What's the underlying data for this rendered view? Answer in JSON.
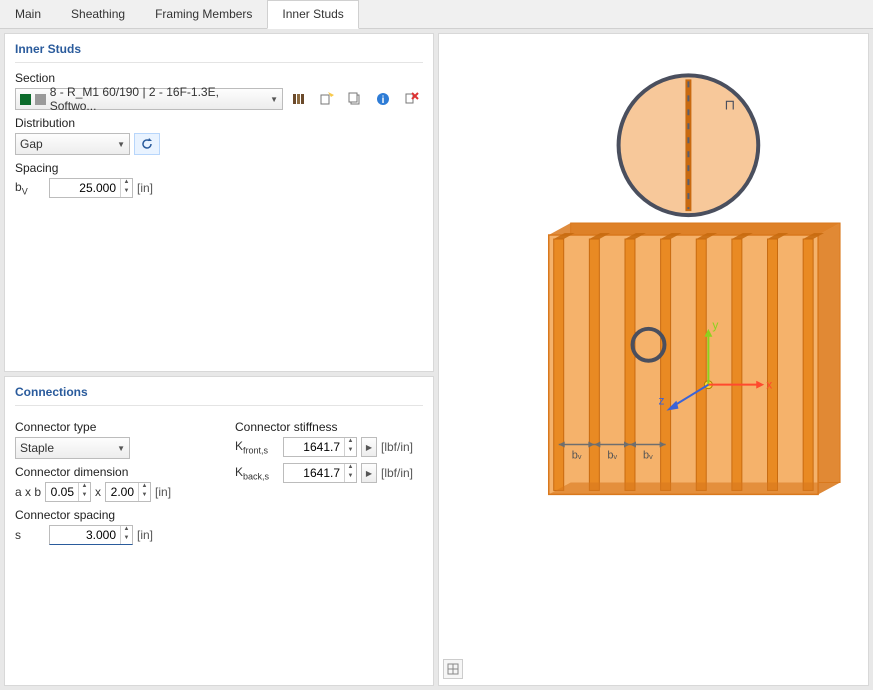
{
  "tabs": [
    "Main",
    "Sheathing",
    "Framing Members",
    "Inner Studs"
  ],
  "active_tab": 3,
  "panel1": {
    "title": "Inner Studs",
    "section": {
      "label": "Section",
      "swatches": [
        "#0b6b2b",
        "#9a9a9a"
      ],
      "value": "8 - R_M1 60/190 | 2 - 16F-1.3E, Softwo..."
    },
    "distribution": {
      "label": "Distribution",
      "value": "Gap"
    },
    "spacing": {
      "label": "Spacing",
      "symbol_main": "b",
      "symbol_sub": "V",
      "value": "25.000",
      "unit": "[in]"
    }
  },
  "panel2": {
    "title": "Connections",
    "connector_type": {
      "label": "Connector type",
      "value": "Staple"
    },
    "connector_dim": {
      "label": "Connector dimension",
      "prefix": "a x b",
      "a": "0.05",
      "x_sep": "x",
      "b": "2.00",
      "unit": "[in]"
    },
    "connector_spacing": {
      "label": "Connector spacing",
      "symbol": "s",
      "value": "3.000",
      "unit": "[in]"
    },
    "stiffness": {
      "label": "Connector stiffness",
      "front": {
        "main": "K",
        "sub": "front,s",
        "value": "1641.7",
        "unit": "[lbf/in]"
      },
      "back": {
        "main": "K",
        "sub": "back,s",
        "value": "1641.7",
        "unit": "[lbf/in]"
      }
    }
  },
  "viz": {
    "colors": {
      "panel_face": "#f5b26b",
      "panel_edge": "#d9781c",
      "stud_face": "#e98a23",
      "stud_edge": "#c86a10",
      "circle_stroke": "#4a4f5e",
      "circle_fill": "#f7c89a",
      "dash": "#5a5f6e",
      "axis_x": "#ff4a2e",
      "axis_y": "#8cd21e",
      "axis_z": "#3a63d8",
      "dim_arrow": "#6e6e6e",
      "origin": "#ffd23a"
    },
    "axes": {
      "x_label": "x",
      "y_label": "y",
      "z_label": "z"
    },
    "dim_labels": [
      "bᵥ",
      "bᵥ",
      "bᵥ"
    ],
    "square_glyph": "⊓"
  }
}
